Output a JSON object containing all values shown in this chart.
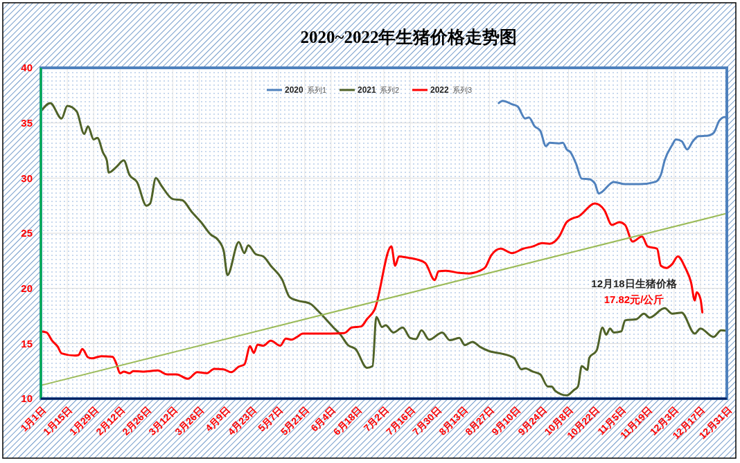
{
  "chart_data": {
    "type": "line",
    "title": "2020~2022年生猪价格走势图",
    "legend": "top",
    "grid": true,
    "xlim": [
      "--01-01",
      "--12-31"
    ],
    "xticks": [
      {
        "value": "--01-01",
        "label": "1月1日"
      },
      {
        "value": "--01-15",
        "label": "1月15日"
      },
      {
        "value": "--01-29",
        "label": "1月29日"
      },
      {
        "value": "--02-12",
        "label": "2月12日"
      },
      {
        "value": "--02-26",
        "label": "2月26日"
      },
      {
        "value": "--03-12",
        "label": "3月12日"
      },
      {
        "value": "--03-26",
        "label": "3月26日"
      },
      {
        "value": "--04-09",
        "label": "4月9日"
      },
      {
        "value": "--04-23",
        "label": "4月23日"
      },
      {
        "value": "--05-07",
        "label": "5月7日"
      },
      {
        "value": "--05-21",
        "label": "5月21日"
      },
      {
        "value": "--06-04",
        "label": "6月4日"
      },
      {
        "value": "--06-18",
        "label": "6月18日"
      },
      {
        "value": "--07-02",
        "label": "7月2日"
      },
      {
        "value": "--07-16",
        "label": "7月16日"
      },
      {
        "value": "--07-30",
        "label": "7月30日"
      },
      {
        "value": "--08-13",
        "label": "8月13日"
      },
      {
        "value": "--08-27",
        "label": "8月27日"
      },
      {
        "value": "--09-10",
        "label": "9月10日"
      },
      {
        "value": "--09-24",
        "label": "9月24日"
      },
      {
        "value": "--10-08",
        "label": "10月8日"
      },
      {
        "value": "--10-22",
        "label": "10月22日"
      },
      {
        "value": "--11-05",
        "label": "11月5日"
      },
      {
        "value": "--11-19",
        "label": "11月19日"
      },
      {
        "value": "--12-03",
        "label": "12月3日"
      },
      {
        "value": "--12-17",
        "label": "12月17日"
      },
      {
        "value": "--12-31",
        "label": "12月31日"
      }
    ],
    "ylim": [
      10,
      40
    ],
    "yticks": [
      10,
      15,
      20,
      25,
      30,
      35,
      40
    ],
    "annotations": [
      "12月18日生猪价格",
      "17.82元/公斤",
      "系列1",
      "系列2",
      "系列3"
    ],
    "series": [
      {
        "name": "2020",
        "color": "#4f81bd",
        "x": [
          "--09-01",
          "--09-03",
          "--09-08",
          "--09-11",
          "--09-15",
          "--09-17",
          "--09-20",
          "--09-23",
          "--09-26",
          "--09-28",
          "--10-03",
          "--10-05",
          "--10-07",
          "--10-09",
          "--10-12",
          "--10-15",
          "--10-19",
          "--10-22",
          "--10-24",
          "--11-01",
          "--11-07",
          "--11-15",
          "--11-23",
          "--11-26",
          "--11-28",
          "--12-02",
          "--12-04",
          "--12-07",
          "--12-10",
          "--12-13",
          "--12-16",
          "--12-21",
          "--12-24",
          "--12-27",
          "--12-30",
          "--12-31"
        ],
        "values": [
          36.8,
          37.0,
          36.7,
          36.5,
          35.4,
          35.5,
          34.7,
          34.3,
          32.9,
          33.2,
          33.15,
          33.2,
          32.6,
          32.35,
          31.3,
          29.95,
          29.9,
          29.5,
          28.6,
          29.65,
          29.45,
          29.45,
          29.65,
          30.3,
          31.6,
          33.0,
          33.5,
          33.35,
          32.6,
          33.35,
          33.8,
          33.85,
          34.1,
          35.2,
          35.55,
          35.5
        ]
      },
      {
        "name": "2021",
        "color": "#4f6228",
        "x": [
          "--01-01",
          "--01-06",
          "--01-12",
          "--01-15",
          "--01-20",
          "--01-24",
          "--01-26",
          "--01-29",
          "--01-31",
          "--02-03",
          "--02-05",
          "--02-06",
          "--02-10",
          "--02-14",
          "--02-17",
          "--02-21",
          "--02-26",
          "--02-28",
          "--03-03",
          "--03-06",
          "--03-12",
          "--03-17",
          "--03-22",
          "--03-27",
          "--04-01",
          "--04-05",
          "--04-08",
          "--04-10",
          "--04-16",
          "--04-19",
          "--04-21",
          "--04-25",
          "--04-29",
          "--05-03",
          "--05-09",
          "--05-13",
          "--05-17",
          "--05-24",
          "--05-28",
          "--06-05",
          "--06-09",
          "--06-13",
          "--06-17",
          "--06-23",
          "--06-26",
          "--06-28",
          "--07-01",
          "--07-03",
          "--07-07",
          "--07-12",
          "--07-16",
          "--07-19",
          "--07-22",
          "--07-26",
          "--08-02",
          "--08-06",
          "--08-11",
          "--08-14",
          "--08-18",
          "--08-22",
          "--08-27",
          "--09-02",
          "--09-09",
          "--09-13",
          "--09-15",
          "--09-19",
          "--09-23",
          "--09-27",
          "--09-29",
          "--10-01",
          "--10-07",
          "--10-11",
          "--10-13",
          "--10-15",
          "--10-18",
          "--10-19",
          "--10-23",
          "--10-26",
          "--10-28",
          "--10-30",
          "--11-01",
          "--11-05",
          "--11-07",
          "--11-13",
          "--11-17",
          "--11-20",
          "--11-28",
          "--12-02",
          "--12-07",
          "--12-14",
          "--12-17",
          "--12-24",
          "--12-28",
          "--12-31"
        ],
        "values": [
          36.05,
          36.8,
          35.4,
          36.55,
          36.05,
          34.0,
          34.7,
          33.5,
          33.65,
          32.3,
          31.6,
          30.5,
          31.0,
          31.6,
          30.3,
          29.65,
          27.5,
          27.7,
          30.0,
          29.3,
          28.1,
          28.0,
          26.95,
          26.0,
          24.9,
          24.4,
          23.4,
          21.2,
          24.2,
          23.2,
          23.9,
          23.1,
          22.9,
          22.05,
          20.8,
          19.2,
          18.9,
          18.6,
          17.97,
          16.5,
          15.8,
          14.85,
          14.5,
          12.8,
          12.95,
          17.4,
          16.5,
          16.65,
          16.0,
          16.45,
          15.5,
          15.4,
          16.2,
          15.35,
          16.0,
          15.3,
          15.5,
          14.85,
          15.15,
          14.7,
          14.3,
          14.1,
          13.7,
          12.65,
          12.75,
          12.45,
          12.2,
          11.1,
          11.1,
          10.7,
          10.3,
          10.8,
          11.1,
          12.95,
          12.6,
          13.7,
          14.4,
          16.45,
          15.8,
          16.35,
          16.0,
          16.1,
          17.1,
          17.2,
          17.7,
          17.35,
          18.2,
          17.7,
          17.8,
          15.9,
          16.35,
          15.6,
          16.2,
          16.15
        ]
      },
      {
        "name": "2022",
        "color": "#ff0000",
        "x": [
          "--01-01",
          "--01-04",
          "--01-07",
          "--01-10",
          "--01-12",
          "--01-19",
          "--01-21",
          "--01-23",
          "--01-26",
          "--01-28",
          "--02-02",
          "--02-08",
          "--02-10",
          "--02-12",
          "--02-14",
          "--02-17",
          "--02-19",
          "--02-24",
          "--03-04",
          "--03-09",
          "--03-14",
          "--03-20",
          "--03-25",
          "--03-30",
          "--04-03",
          "--04-08",
          "--04-12",
          "--04-16",
          "--04-19",
          "--04-22",
          "--04-24",
          "--04-26",
          "--04-29",
          "--05-03",
          "--05-08",
          "--05-11",
          "--05-14",
          "--05-17",
          "--05-20",
          "--05-28",
          "--06-04",
          "--06-11",
          "--06-15",
          "--06-20",
          "--06-23",
          "--06-27",
          "--07-06",
          "--07-08",
          "--07-10",
          "--07-14",
          "--07-20",
          "--07-24",
          "--07-29",
          "--07-31",
          "--08-04",
          "--08-11",
          "--08-16",
          "--08-22",
          "--08-25",
          "--08-28",
          "--09-02",
          "--09-08",
          "--09-14",
          "--09-19",
          "--09-24",
          "--09-28",
          "--10-03",
          "--10-07",
          "--10-11",
          "--10-13",
          "--10-22",
          "--10-27",
          "--10-31",
          "--11-04",
          "--11-07",
          "--11-11",
          "--11-16",
          "--11-19",
          "--11-24",
          "--11-26",
          "--11-29",
          "--12-02",
          "--12-05",
          "--12-09",
          "--12-12",
          "--12-14",
          "--12-15",
          "--12-17",
          "--12-18"
        ],
        "values": [
          16.1,
          16.0,
          15.25,
          14.7,
          14.1,
          13.9,
          13.95,
          14.5,
          13.75,
          13.65,
          13.85,
          13.8,
          13.2,
          12.3,
          12.45,
          12.3,
          12.5,
          12.45,
          12.55,
          12.2,
          12.2,
          11.8,
          12.4,
          12.3,
          12.7,
          12.65,
          12.4,
          12.9,
          13.1,
          14.75,
          14.15,
          14.9,
          14.8,
          15.25,
          14.8,
          15.45,
          15.35,
          15.6,
          15.9,
          15.9,
          15.9,
          15.95,
          16.45,
          16.55,
          17.2,
          18.05,
          23.8,
          22.05,
          22.9,
          22.8,
          22.6,
          22.3,
          20.75,
          21.55,
          21.6,
          21.4,
          21.35,
          21.6,
          21.95,
          23.0,
          23.6,
          23.2,
          23.6,
          23.8,
          24.1,
          24.05,
          24.7,
          26.0,
          26.4,
          26.5,
          27.7,
          27.1,
          25.75,
          26.0,
          25.75,
          24.25,
          24.7,
          23.8,
          23.6,
          22.05,
          21.85,
          22.2,
          22.9,
          21.85,
          20.55,
          18.9,
          19.65,
          19.05,
          17.82
        ]
      },
      {
        "type": "line",
        "color": "#9bbb59",
        "x": [
          "--01-01",
          "--12-31"
        ],
        "values": [
          11.2,
          26.8
        ]
      }
    ]
  }
}
